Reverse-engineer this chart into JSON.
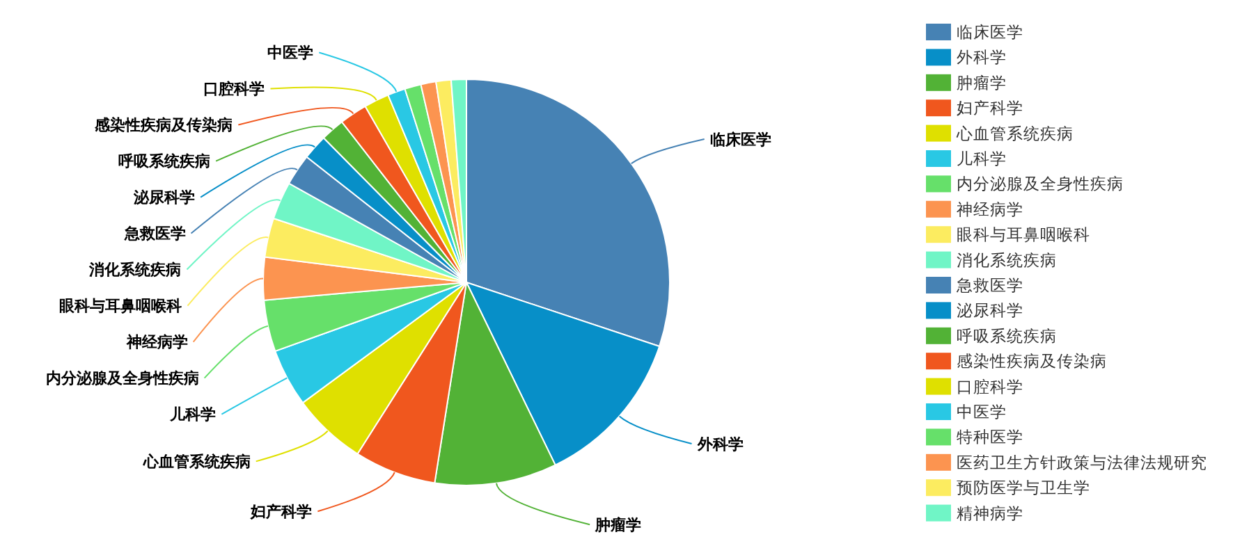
{
  "chart_data": {
    "type": "pie",
    "categories": [
      "临床医学",
      "外科学",
      "肿瘤学",
      "妇产科学",
      "心血管系统疾病",
      "儿科学",
      "内分泌腺及全身性疾病",
      "神经病学",
      "眼科与耳鼻咽喉科",
      "消化系统疾病",
      "急救医学",
      "泌尿科学",
      "呼吸系统疾病",
      "感染性疾病及传染病",
      "口腔科学",
      "中医学",
      "特种医学",
      "医药卫生方针政策与法律法规研究",
      "预防医学与卫生学",
      "精神病学"
    ],
    "values": [
      30.1,
      12.7,
      9.7,
      6.5,
      5.9,
      4.6,
      4.1,
      3.4,
      3.1,
      3.0,
      2.5,
      2.0,
      1.9,
      2.2,
      2.0,
      1.4,
      1.3,
      1.2,
      1.2,
      1.2
    ],
    "colors": [
      "#4682b4",
      "#078fc8",
      "#52b236",
      "#f0571e",
      "#dfe000",
      "#29c8e4",
      "#66e06a",
      "#fc9450",
      "#fcec60",
      "#70f5c6",
      "#4682b4",
      "#078fc8",
      "#52b236",
      "#f0571e",
      "#dfe000",
      "#29c8e4",
      "#66e06a",
      "#fc9450",
      "#fcec60",
      "#70f5c6"
    ],
    "legend": "right"
  }
}
